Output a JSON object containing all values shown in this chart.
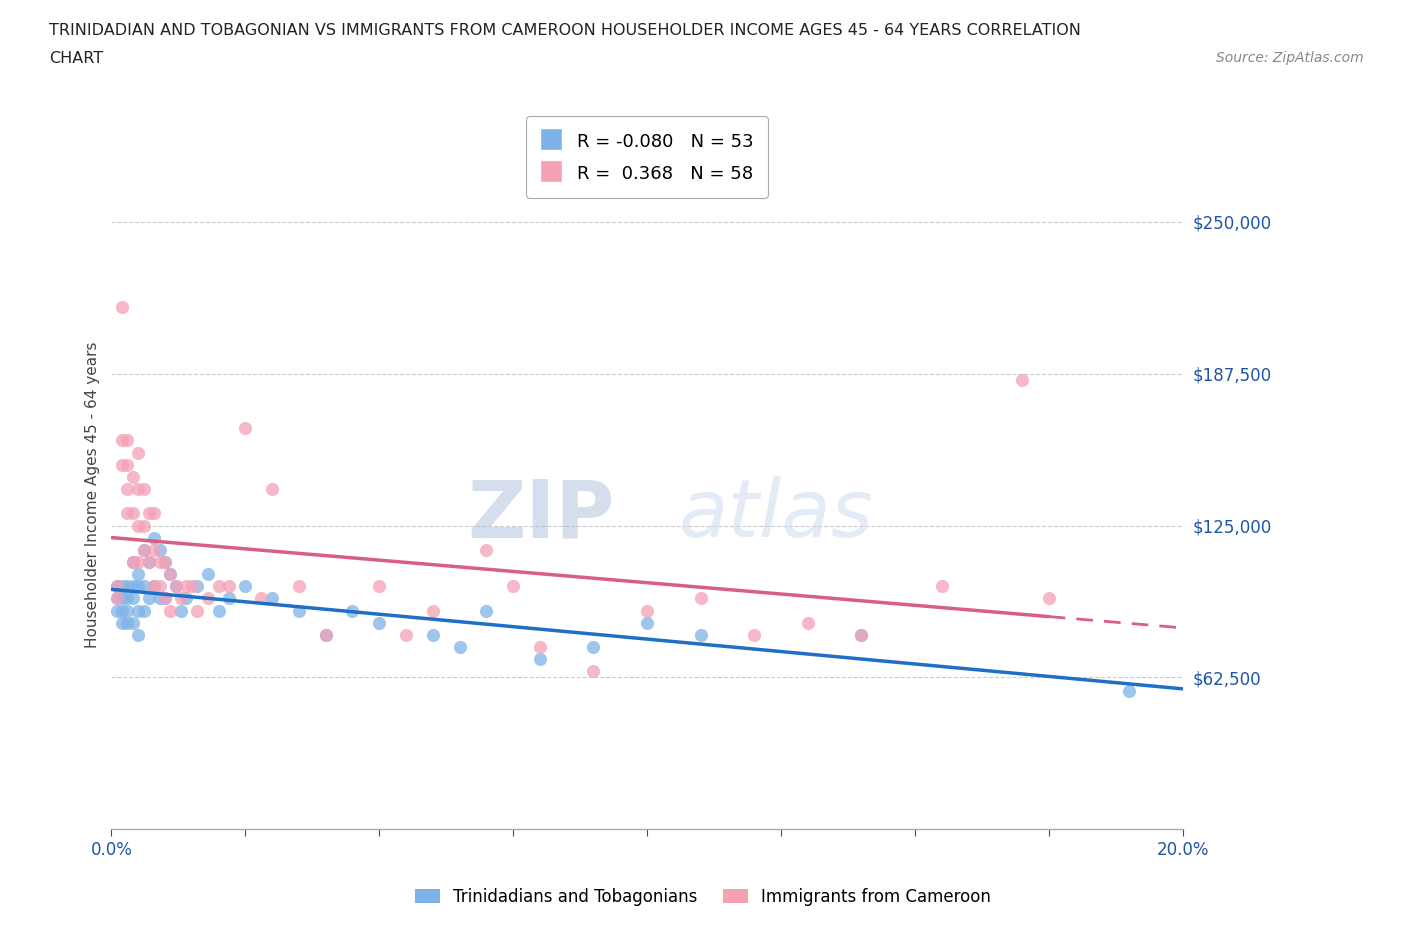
{
  "title_line1": "TRINIDADIAN AND TOBAGONIAN VS IMMIGRANTS FROM CAMEROON HOUSEHOLDER INCOME AGES 45 - 64 YEARS CORRELATION",
  "title_line2": "CHART",
  "source_text": "Source: ZipAtlas.com",
  "ylabel": "Householder Income Ages 45 - 64 years",
  "x_min": 0.0,
  "x_max": 0.2,
  "y_min": 0,
  "y_max": 275000,
  "yticks": [
    0,
    62500,
    125000,
    187500,
    250000
  ],
  "ytick_labels": [
    "",
    "$62,500",
    "$125,000",
    "$187,500",
    "$250,000"
  ],
  "xticks": [
    0.0,
    0.025,
    0.05,
    0.075,
    0.1,
    0.125,
    0.15,
    0.175,
    0.2
  ],
  "xtick_labels": [
    "0.0%",
    "",
    "",
    "",
    "",
    "",
    "",
    "",
    "20.0%"
  ],
  "color_blue": "#7EB3E8",
  "color_pink": "#F4A0B5",
  "color_trend_blue": "#1F6FC6",
  "color_trend_pink": "#D95F82",
  "legend_r1": "R = -0.080",
  "legend_n1": "N = 53",
  "legend_r2": "R =  0.368",
  "legend_n2": "N = 58",
  "watermark_zip": "ZIP",
  "watermark_atlas": "atlas",
  "blue_scatter_x": [
    0.001,
    0.001,
    0.001,
    0.002,
    0.002,
    0.002,
    0.002,
    0.003,
    0.003,
    0.003,
    0.003,
    0.004,
    0.004,
    0.004,
    0.004,
    0.005,
    0.005,
    0.005,
    0.005,
    0.006,
    0.006,
    0.006,
    0.007,
    0.007,
    0.008,
    0.008,
    0.009,
    0.009,
    0.01,
    0.01,
    0.011,
    0.012,
    0.013,
    0.014,
    0.016,
    0.018,
    0.02,
    0.022,
    0.025,
    0.03,
    0.035,
    0.04,
    0.045,
    0.05,
    0.06,
    0.065,
    0.07,
    0.08,
    0.09,
    0.1,
    0.11,
    0.14,
    0.19
  ],
  "blue_scatter_y": [
    100000,
    95000,
    90000,
    100000,
    95000,
    90000,
    85000,
    100000,
    95000,
    90000,
    85000,
    110000,
    100000,
    95000,
    85000,
    105000,
    100000,
    90000,
    80000,
    115000,
    100000,
    90000,
    110000,
    95000,
    120000,
    100000,
    115000,
    95000,
    110000,
    95000,
    105000,
    100000,
    90000,
    95000,
    100000,
    105000,
    90000,
    95000,
    100000,
    95000,
    90000,
    80000,
    90000,
    85000,
    80000,
    75000,
    90000,
    70000,
    75000,
    85000,
    80000,
    80000,
    57000
  ],
  "pink_scatter_x": [
    0.001,
    0.001,
    0.002,
    0.002,
    0.002,
    0.003,
    0.003,
    0.003,
    0.003,
    0.004,
    0.004,
    0.004,
    0.005,
    0.005,
    0.005,
    0.005,
    0.006,
    0.006,
    0.006,
    0.007,
    0.007,
    0.008,
    0.008,
    0.008,
    0.009,
    0.009,
    0.01,
    0.01,
    0.011,
    0.011,
    0.012,
    0.013,
    0.014,
    0.015,
    0.016,
    0.018,
    0.02,
    0.022,
    0.025,
    0.028,
    0.03,
    0.035,
    0.04,
    0.05,
    0.055,
    0.06,
    0.07,
    0.075,
    0.08,
    0.09,
    0.1,
    0.11,
    0.12,
    0.13,
    0.14,
    0.155,
    0.17,
    0.175
  ],
  "pink_scatter_y": [
    100000,
    95000,
    160000,
    150000,
    215000,
    160000,
    150000,
    140000,
    130000,
    145000,
    130000,
    110000,
    155000,
    140000,
    125000,
    110000,
    140000,
    125000,
    115000,
    130000,
    110000,
    130000,
    115000,
    100000,
    110000,
    100000,
    110000,
    95000,
    105000,
    90000,
    100000,
    95000,
    100000,
    100000,
    90000,
    95000,
    100000,
    100000,
    165000,
    95000,
    140000,
    100000,
    80000,
    100000,
    80000,
    90000,
    115000,
    100000,
    75000,
    65000,
    90000,
    95000,
    80000,
    85000,
    80000,
    100000,
    185000,
    95000
  ]
}
